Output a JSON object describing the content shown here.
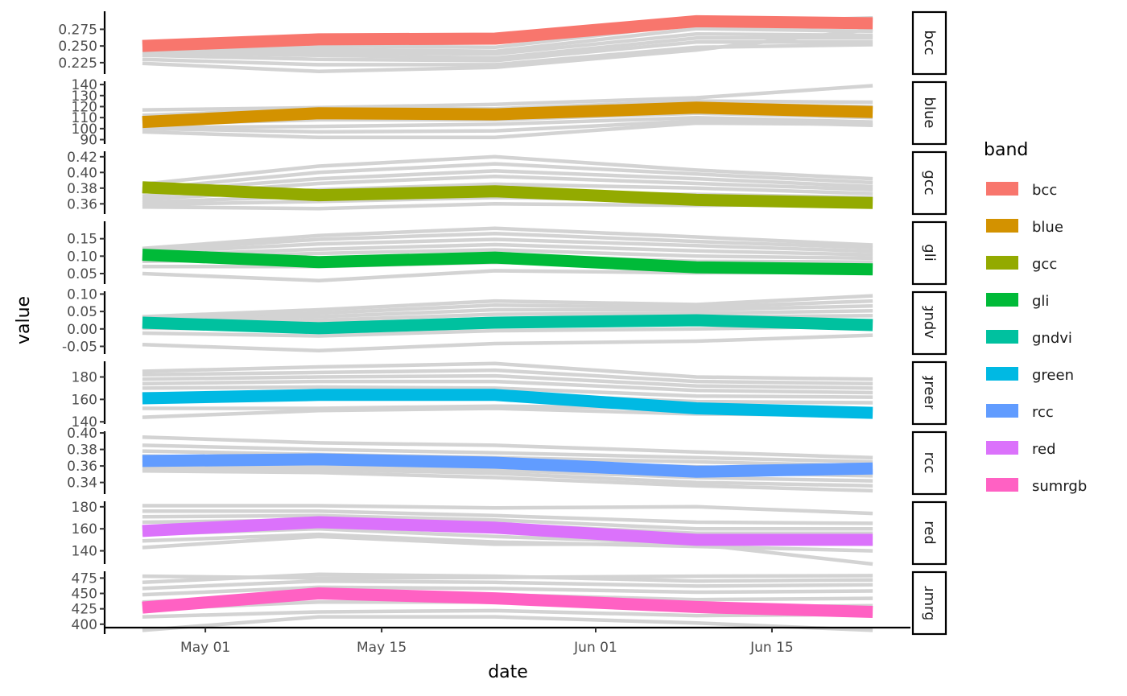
{
  "chart_data": {
    "type": "line",
    "layout": "faceted",
    "xlabel": "date",
    "ylabel": "value",
    "x_dates": [
      "2022-04-26",
      "2022-05-10",
      "2022-05-24",
      "2022-06-09",
      "2022-06-23"
    ],
    "x_ticks": [
      {
        "date": "2022-05-01",
        "label": "May 01"
      },
      {
        "date": "2022-05-15",
        "label": "May 15"
      },
      {
        "date": "2022-06-01",
        "label": "Jun 01"
      },
      {
        "date": "2022-06-15",
        "label": "Jun 15"
      }
    ],
    "x_range": [
      "2022-04-23",
      "2022-06-26"
    ],
    "legend": {
      "title": "band",
      "position": "right"
    },
    "background_line_color": "#d3d3d3",
    "grid": false,
    "panels": [
      {
        "band": "bcc",
        "color": "#F8766D",
        "ylim": [
          0.208,
          0.302
        ],
        "ticks": [
          0.225,
          0.25,
          0.275
        ],
        "tick_labels": [
          "0.225",
          "0.250",
          "0.275"
        ],
        "highlight": [
          0.25,
          0.26,
          0.261,
          0.287,
          0.284
        ],
        "background": [
          [
            0.255,
            0.252,
            0.255,
            0.285,
            0.292
          ],
          [
            0.252,
            0.25,
            0.248,
            0.283,
            0.288
          ],
          [
            0.247,
            0.245,
            0.242,
            0.276,
            0.272
          ],
          [
            0.244,
            0.24,
            0.238,
            0.268,
            0.266
          ],
          [
            0.24,
            0.236,
            0.232,
            0.262,
            0.262
          ],
          [
            0.236,
            0.23,
            0.228,
            0.256,
            0.256
          ],
          [
            0.23,
            0.222,
            0.222,
            0.248,
            0.252
          ],
          [
            0.224,
            0.212,
            0.218,
            0.244,
            0.275
          ]
        ]
      },
      {
        "band": "blue",
        "color": "#D39200",
        "ylim": [
          86,
          143
        ],
        "ticks": [
          90,
          100,
          110,
          120,
          130,
          140
        ],
        "tick_labels": [
          "90",
          "100",
          "110",
          "120",
          "130",
          "140"
        ],
        "highlight": [
          106,
          114,
          113,
          119,
          115
        ],
        "background": [
          [
            117,
            119,
            122,
            128,
            139
          ],
          [
            112,
            118,
            118,
            125,
            124
          ],
          [
            110,
            114,
            115,
            122,
            120
          ],
          [
            107,
            111,
            112,
            118,
            115
          ],
          [
            104,
            108,
            108,
            114,
            110
          ],
          [
            101,
            102,
            104,
            110,
            106
          ],
          [
            100,
            97,
            98,
            107,
            103
          ],
          [
            97,
            92,
            92,
            105,
            104
          ]
        ]
      },
      {
        "band": "gcc",
        "color": "#93AA00",
        "ylim": [
          0.347,
          0.427
        ],
        "ticks": [
          0.36,
          0.38,
          0.4,
          0.42
        ],
        "tick_labels": [
          "0.36",
          "0.38",
          "0.40",
          "0.42"
        ],
        "highlight": [
          0.381,
          0.371,
          0.376,
          0.365,
          0.361
        ],
        "background": [
          [
            0.385,
            0.408,
            0.42,
            0.403,
            0.392
          ],
          [
            0.379,
            0.4,
            0.411,
            0.398,
            0.387
          ],
          [
            0.375,
            0.392,
            0.402,
            0.392,
            0.382
          ],
          [
            0.37,
            0.386,
            0.395,
            0.386,
            0.378
          ],
          [
            0.366,
            0.378,
            0.385,
            0.38,
            0.373
          ],
          [
            0.362,
            0.37,
            0.375,
            0.372,
            0.368
          ],
          [
            0.359,
            0.363,
            0.368,
            0.365,
            0.364
          ],
          [
            0.356,
            0.354,
            0.36,
            0.358,
            0.36
          ]
        ]
      },
      {
        "band": "gli",
        "color": "#00BA38",
        "ylim": [
          0.02,
          0.2
        ],
        "ticks": [
          0.05,
          0.1,
          0.15
        ],
        "tick_labels": [
          "0.05",
          "0.10",
          "0.15"
        ],
        "highlight": [
          0.104,
          0.083,
          0.096,
          0.068,
          0.062
        ],
        "background": [
          [
            0.122,
            0.159,
            0.18,
            0.155,
            0.132
          ],
          [
            0.116,
            0.148,
            0.165,
            0.142,
            0.124
          ],
          [
            0.11,
            0.135,
            0.148,
            0.13,
            0.114
          ],
          [
            0.102,
            0.12,
            0.133,
            0.115,
            0.104
          ],
          [
            0.094,
            0.108,
            0.118,
            0.1,
            0.094
          ],
          [
            0.085,
            0.092,
            0.102,
            0.085,
            0.083
          ],
          [
            0.07,
            0.07,
            0.082,
            0.07,
            0.072
          ],
          [
            0.05,
            0.03,
            0.058,
            0.052,
            0.054
          ]
        ]
      },
      {
        "band": "gndvi",
        "color": "#00C19F",
        "ylim": [
          -0.072,
          0.108
        ],
        "ticks": [
          -0.05,
          0,
          0.05,
          0.1
        ],
        "tick_labels": [
          "-0.05",
          "0.00",
          "0.05",
          "0.10"
        ],
        "highlight": [
          0.018,
          0.002,
          0.018,
          0.025,
          0.011
        ],
        "background": [
          [
            0.035,
            0.055,
            0.08,
            0.07,
            0.095
          ],
          [
            0.03,
            0.045,
            0.068,
            0.062,
            0.08
          ],
          [
            0.024,
            0.035,
            0.055,
            0.055,
            0.066
          ],
          [
            0.018,
            0.025,
            0.042,
            0.045,
            0.052
          ],
          [
            0.01,
            0.015,
            0.03,
            0.035,
            0.038
          ],
          [
            0.002,
            0.0,
            0.015,
            0.02,
            0.024
          ],
          [
            -0.012,
            -0.02,
            -0.005,
            0.0,
            0.008
          ],
          [
            -0.045,
            -0.062,
            -0.042,
            -0.035,
            -0.018
          ]
        ]
      },
      {
        "band": "green",
        "color": "#00B9E3",
        "ylim": [
          138,
          194
        ],
        "ticks": [
          140,
          160,
          180
        ],
        "tick_labels": [
          "140",
          "160",
          "180"
        ],
        "highlight": [
          161,
          164,
          164,
          152,
          148
        ],
        "background": [
          [
            185,
            189,
            192,
            180,
            178
          ],
          [
            182,
            184,
            186,
            176,
            174
          ],
          [
            178,
            180,
            181,
            172,
            170
          ],
          [
            174,
            176,
            176,
            168,
            166
          ],
          [
            170,
            171,
            170,
            163,
            162
          ],
          [
            165,
            164,
            165,
            158,
            157
          ],
          [
            152,
            152,
            154,
            152,
            150
          ],
          [
            144,
            150,
            152,
            147,
            146
          ]
        ]
      },
      {
        "band": "rcc",
        "color": "#619CFF",
        "ylim": [
          0.326,
          0.402
        ],
        "ticks": [
          0.34,
          0.36,
          0.38,
          0.4
        ],
        "tick_labels": [
          "0.34",
          "0.36",
          "0.38",
          "0.40"
        ],
        "highlight": [
          0.366,
          0.368,
          0.364,
          0.353,
          0.357
        ],
        "background": [
          [
            0.395,
            0.388,
            0.385,
            0.377,
            0.37
          ],
          [
            0.385,
            0.38,
            0.376,
            0.37,
            0.365
          ],
          [
            0.378,
            0.374,
            0.37,
            0.365,
            0.36
          ],
          [
            0.372,
            0.369,
            0.365,
            0.359,
            0.354
          ],
          [
            0.366,
            0.364,
            0.36,
            0.352,
            0.348
          ],
          [
            0.361,
            0.36,
            0.355,
            0.346,
            0.342
          ],
          [
            0.357,
            0.356,
            0.351,
            0.34,
            0.336
          ],
          [
            0.354,
            0.352,
            0.346,
            0.336,
            0.33
          ]
        ]
      },
      {
        "band": "red",
        "color": "#DB72FB",
        "ylim": [
          128,
          185
        ],
        "ticks": [
          140,
          160,
          180
        ],
        "tick_labels": [
          "140",
          "160",
          "180"
        ],
        "highlight": [
          158,
          166,
          161,
          150,
          150
        ],
        "background": [
          [
            181,
            181,
            179,
            180,
            174
          ],
          [
            176,
            176,
            172,
            166,
            165
          ],
          [
            171,
            172,
            168,
            160,
            160
          ],
          [
            166,
            168,
            164,
            156,
            156
          ],
          [
            161,
            164,
            159,
            151,
            152
          ],
          [
            155,
            160,
            153,
            147,
            146
          ],
          [
            149,
            155,
            148,
            144,
            140
          ],
          [
            143,
            153,
            146,
            146,
            128
          ]
        ]
      },
      {
        "band": "sumrgb",
        "color": "#FF61C3",
        "ylim": [
          384,
          486
        ],
        "ticks": [
          400,
          425,
          450,
          475
        ],
        "tick_labels": [
          "400",
          "425",
          "450",
          "475"
        ],
        "highlight": [
          427,
          450,
          442,
          428,
          420
        ],
        "background": [
          [
            478,
            475,
            476,
            478,
            479
          ],
          [
            468,
            481,
            478,
            470,
            472
          ],
          [
            458,
            470,
            468,
            462,
            464
          ],
          [
            448,
            460,
            458,
            452,
            454
          ],
          [
            436,
            448,
            448,
            440,
            442
          ],
          [
            424,
            436,
            436,
            428,
            430
          ],
          [
            412,
            420,
            422,
            414,
            416
          ],
          [
            390,
            412,
            412,
            402,
            390
          ]
        ]
      }
    ]
  }
}
